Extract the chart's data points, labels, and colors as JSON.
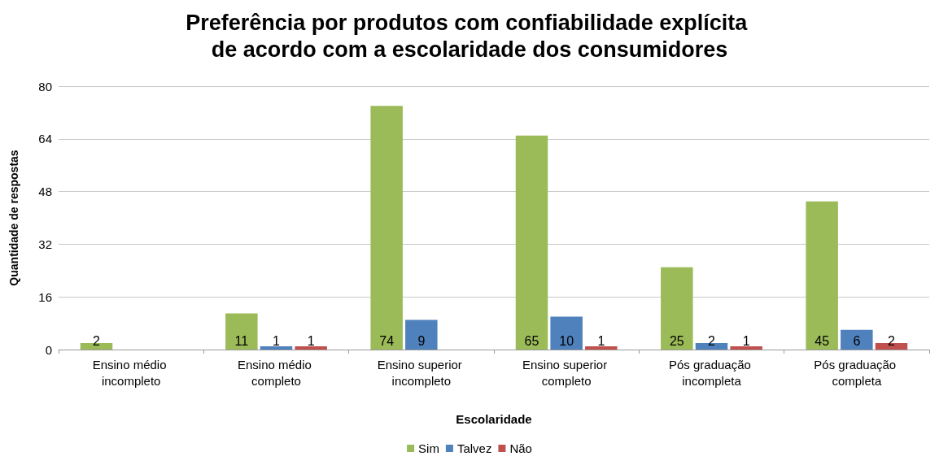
{
  "chart_data": {
    "type": "bar",
    "title": "Preferência por produtos com confiabilidade explícita de acordo com a escolaridade dos consumidores",
    "xlabel": "Escolaridade",
    "ylabel": "Quantidade de respostas",
    "categories": [
      "Ensino médio incompleto",
      "Ensino médio completo",
      "Ensino superior incompleto",
      "Ensino superior completo",
      "Pós graduação incompleta",
      "Pós graduação completa"
    ],
    "series": [
      {
        "name": "Sim",
        "color": "#9bbb59",
        "values": [
          2,
          11,
          74,
          65,
          25,
          45
        ]
      },
      {
        "name": "Talvez",
        "color": "#4f81bd",
        "values": [
          null,
          1,
          9,
          10,
          2,
          6
        ]
      },
      {
        "name": "Não",
        "color": "#c0504d",
        "values": [
          null,
          1,
          null,
          1,
          1,
          2
        ]
      }
    ],
    "ylim": [
      0,
      80
    ],
    "yticks": [
      0,
      16,
      32,
      48,
      64,
      80
    ],
    "grid": "y",
    "legend": "bottom",
    "data_labels": true
  }
}
